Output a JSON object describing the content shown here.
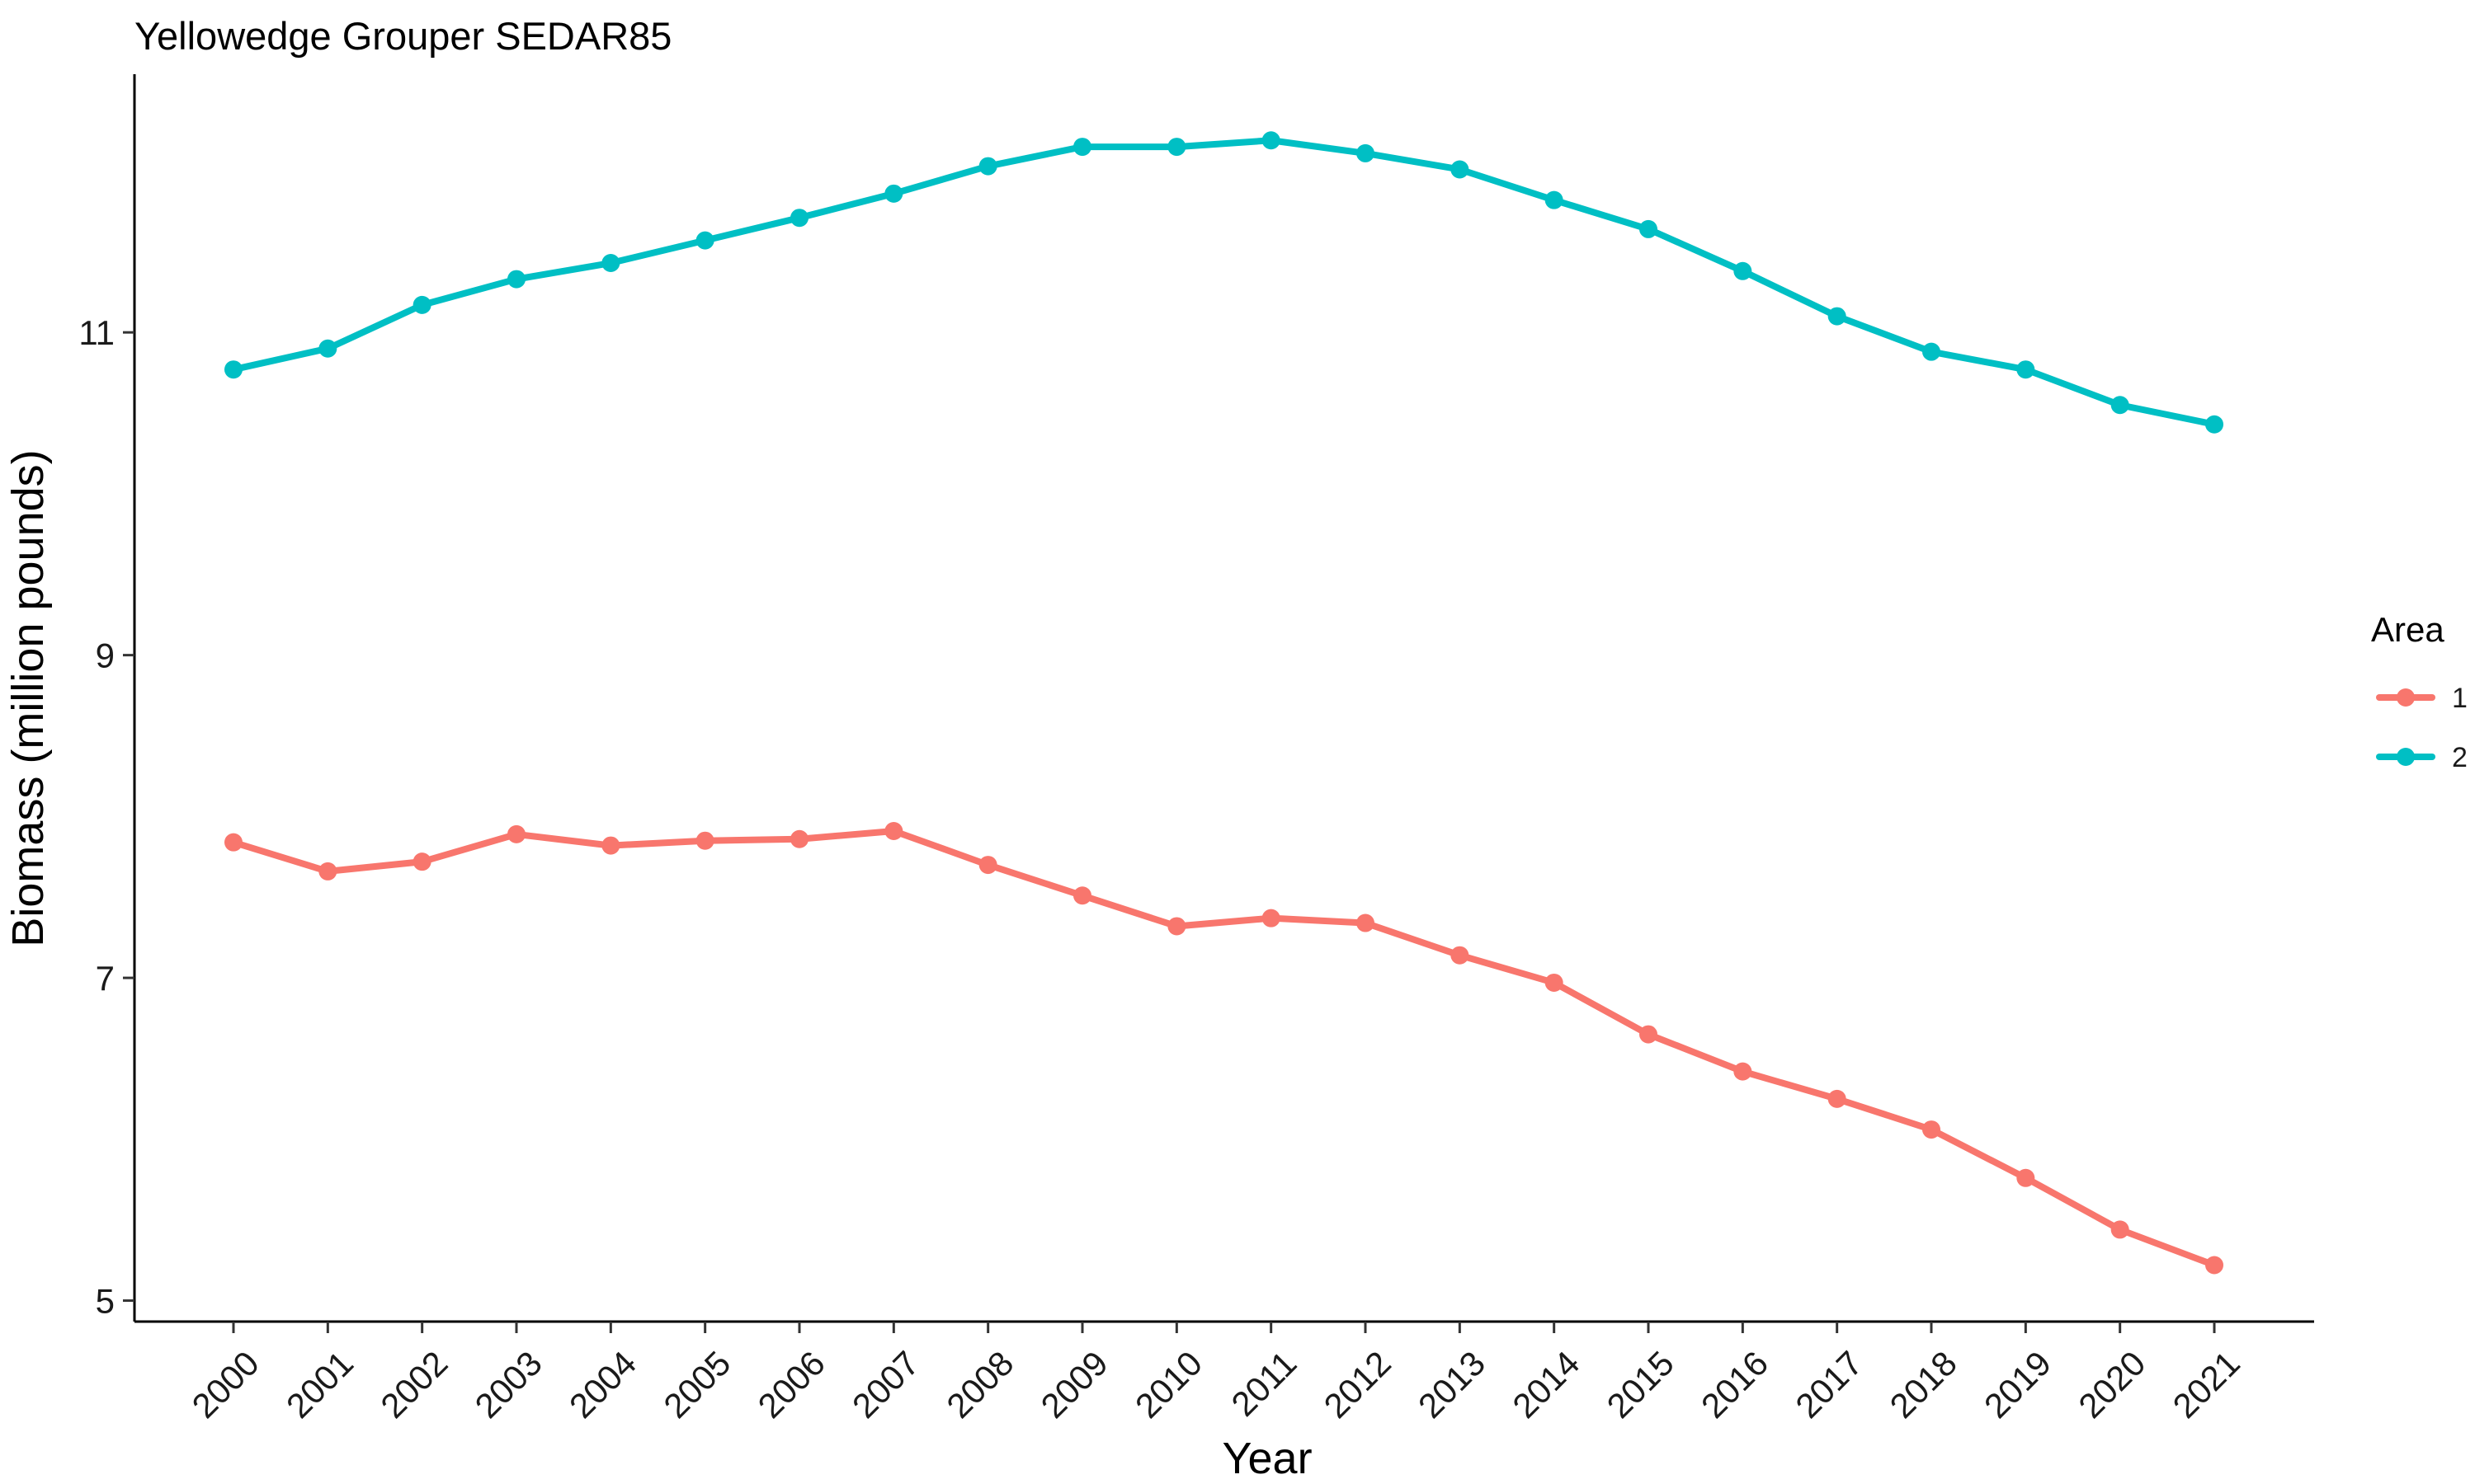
{
  "chart_data": {
    "type": "line",
    "title": "Yellowedge Grouper SEDAR85",
    "xlabel": "Year",
    "ylabel": "Biomass (million pounds)",
    "x": [
      2000,
      2001,
      2002,
      2003,
      2004,
      2005,
      2006,
      2007,
      2008,
      2009,
      2010,
      2011,
      2012,
      2013,
      2014,
      2015,
      2016,
      2017,
      2018,
      2019,
      2020,
      2021
    ],
    "x_tick_labels": [
      "2000",
      "2001",
      "2002",
      "2003",
      "2004",
      "2005",
      "2006",
      "2007",
      "2008",
      "2009",
      "2010",
      "2011",
      "2012",
      "2013",
      "2014",
      "2015",
      "2016",
      "2017",
      "2018",
      "2019",
      "2020",
      "2021"
    ],
    "y_ticks": [
      5,
      7,
      9,
      11
    ],
    "y_tick_labels": [
      "5",
      "7",
      "9",
      "11"
    ],
    "ylim": [
      4.87,
      12.6
    ],
    "grid": false,
    "legend": {
      "title": "Area",
      "position": "right"
    },
    "series": [
      {
        "name": "1",
        "color": "#F8766D",
        "values": [
          7.84,
          7.66,
          7.72,
          7.89,
          7.82,
          7.85,
          7.86,
          7.91,
          7.7,
          7.51,
          7.32,
          7.37,
          7.34,
          7.14,
          6.97,
          6.65,
          6.42,
          6.25,
          6.06,
          5.76,
          5.44,
          5.22
        ]
      },
      {
        "name": "2",
        "color": "#00BFC4",
        "values": [
          10.77,
          10.9,
          11.17,
          11.33,
          11.43,
          11.57,
          11.71,
          11.86,
          12.03,
          12.15,
          12.15,
          12.19,
          12.11,
          12.01,
          11.82,
          11.64,
          11.38,
          11.1,
          10.88,
          10.77,
          10.55,
          10.43
        ]
      }
    ]
  }
}
